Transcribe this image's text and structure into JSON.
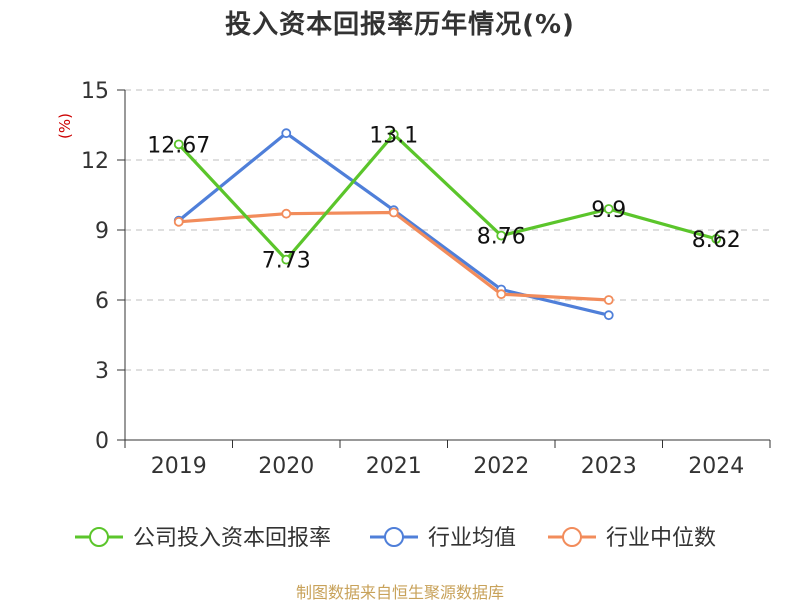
{
  "chart_data": {
    "type": "line",
    "title": "投入资本回报率历年情况(%)",
    "ylabel": "(%)",
    "xlabel": "",
    "ylim": [
      0,
      15
    ],
    "yticks": [
      0,
      3,
      6,
      9,
      12,
      15
    ],
    "categories": [
      "2019",
      "2020",
      "2021",
      "2022",
      "2023",
      "2024"
    ],
    "grid": true,
    "legend_position": "bottom",
    "series": [
      {
        "name": "公司投入资本回报率",
        "color": "#5bc52b",
        "values": [
          12.67,
          7.73,
          13.1,
          8.76,
          9.9,
          8.62
        ],
        "labels": [
          "12.67",
          "7.73",
          "13.1",
          "8.76",
          "9.9",
          "8.62"
        ]
      },
      {
        "name": "行业均值",
        "color": "#4f7fd9",
        "values": [
          9.4,
          13.15,
          9.85,
          6.45,
          5.35,
          null
        ]
      },
      {
        "name": "行业中位数",
        "color": "#f28c5b",
        "values": [
          9.35,
          9.7,
          9.75,
          6.25,
          6.0,
          null
        ]
      }
    ]
  },
  "footer": {
    "source": "制图数据来自恒生聚源数据库"
  }
}
